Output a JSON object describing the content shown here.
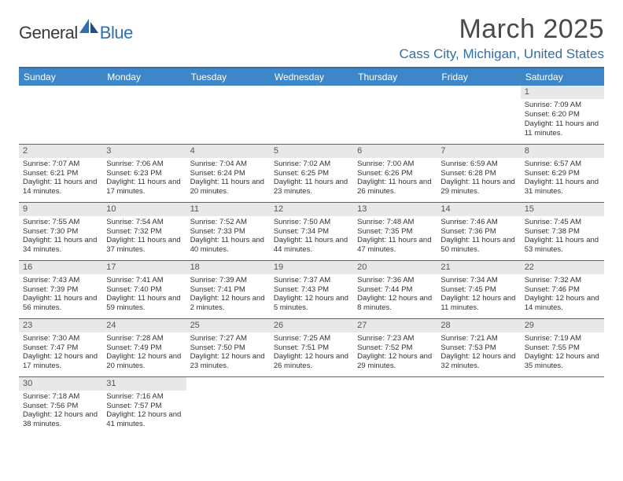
{
  "logo": {
    "part1": "General",
    "part2": "Blue"
  },
  "title": "March 2025",
  "location": "Cass City, Michigan, United States",
  "colors": {
    "header_bg": "#3d87c9",
    "accent": "#2f6fae",
    "daynum_bg": "#e8e8e8",
    "text": "#333333"
  },
  "weekdays": [
    "Sunday",
    "Monday",
    "Tuesday",
    "Wednesday",
    "Thursday",
    "Friday",
    "Saturday"
  ],
  "weeks": [
    [
      null,
      null,
      null,
      null,
      null,
      null,
      {
        "n": "1",
        "sr": "Sunrise: 7:09 AM",
        "ss": "Sunset: 6:20 PM",
        "dl": "Daylight: 11 hours and 11 minutes."
      }
    ],
    [
      {
        "n": "2",
        "sr": "Sunrise: 7:07 AM",
        "ss": "Sunset: 6:21 PM",
        "dl": "Daylight: 11 hours and 14 minutes."
      },
      {
        "n": "3",
        "sr": "Sunrise: 7:06 AM",
        "ss": "Sunset: 6:23 PM",
        "dl": "Daylight: 11 hours and 17 minutes."
      },
      {
        "n": "4",
        "sr": "Sunrise: 7:04 AM",
        "ss": "Sunset: 6:24 PM",
        "dl": "Daylight: 11 hours and 20 minutes."
      },
      {
        "n": "5",
        "sr": "Sunrise: 7:02 AM",
        "ss": "Sunset: 6:25 PM",
        "dl": "Daylight: 11 hours and 23 minutes."
      },
      {
        "n": "6",
        "sr": "Sunrise: 7:00 AM",
        "ss": "Sunset: 6:26 PM",
        "dl": "Daylight: 11 hours and 26 minutes."
      },
      {
        "n": "7",
        "sr": "Sunrise: 6:59 AM",
        "ss": "Sunset: 6:28 PM",
        "dl": "Daylight: 11 hours and 29 minutes."
      },
      {
        "n": "8",
        "sr": "Sunrise: 6:57 AM",
        "ss": "Sunset: 6:29 PM",
        "dl": "Daylight: 11 hours and 31 minutes."
      }
    ],
    [
      {
        "n": "9",
        "sr": "Sunrise: 7:55 AM",
        "ss": "Sunset: 7:30 PM",
        "dl": "Daylight: 11 hours and 34 minutes."
      },
      {
        "n": "10",
        "sr": "Sunrise: 7:54 AM",
        "ss": "Sunset: 7:32 PM",
        "dl": "Daylight: 11 hours and 37 minutes."
      },
      {
        "n": "11",
        "sr": "Sunrise: 7:52 AM",
        "ss": "Sunset: 7:33 PM",
        "dl": "Daylight: 11 hours and 40 minutes."
      },
      {
        "n": "12",
        "sr": "Sunrise: 7:50 AM",
        "ss": "Sunset: 7:34 PM",
        "dl": "Daylight: 11 hours and 44 minutes."
      },
      {
        "n": "13",
        "sr": "Sunrise: 7:48 AM",
        "ss": "Sunset: 7:35 PM",
        "dl": "Daylight: 11 hours and 47 minutes."
      },
      {
        "n": "14",
        "sr": "Sunrise: 7:46 AM",
        "ss": "Sunset: 7:36 PM",
        "dl": "Daylight: 11 hours and 50 minutes."
      },
      {
        "n": "15",
        "sr": "Sunrise: 7:45 AM",
        "ss": "Sunset: 7:38 PM",
        "dl": "Daylight: 11 hours and 53 minutes."
      }
    ],
    [
      {
        "n": "16",
        "sr": "Sunrise: 7:43 AM",
        "ss": "Sunset: 7:39 PM",
        "dl": "Daylight: 11 hours and 56 minutes."
      },
      {
        "n": "17",
        "sr": "Sunrise: 7:41 AM",
        "ss": "Sunset: 7:40 PM",
        "dl": "Daylight: 11 hours and 59 minutes."
      },
      {
        "n": "18",
        "sr": "Sunrise: 7:39 AM",
        "ss": "Sunset: 7:41 PM",
        "dl": "Daylight: 12 hours and 2 minutes."
      },
      {
        "n": "19",
        "sr": "Sunrise: 7:37 AM",
        "ss": "Sunset: 7:43 PM",
        "dl": "Daylight: 12 hours and 5 minutes."
      },
      {
        "n": "20",
        "sr": "Sunrise: 7:36 AM",
        "ss": "Sunset: 7:44 PM",
        "dl": "Daylight: 12 hours and 8 minutes."
      },
      {
        "n": "21",
        "sr": "Sunrise: 7:34 AM",
        "ss": "Sunset: 7:45 PM",
        "dl": "Daylight: 12 hours and 11 minutes."
      },
      {
        "n": "22",
        "sr": "Sunrise: 7:32 AM",
        "ss": "Sunset: 7:46 PM",
        "dl": "Daylight: 12 hours and 14 minutes."
      }
    ],
    [
      {
        "n": "23",
        "sr": "Sunrise: 7:30 AM",
        "ss": "Sunset: 7:47 PM",
        "dl": "Daylight: 12 hours and 17 minutes."
      },
      {
        "n": "24",
        "sr": "Sunrise: 7:28 AM",
        "ss": "Sunset: 7:49 PM",
        "dl": "Daylight: 12 hours and 20 minutes."
      },
      {
        "n": "25",
        "sr": "Sunrise: 7:27 AM",
        "ss": "Sunset: 7:50 PM",
        "dl": "Daylight: 12 hours and 23 minutes."
      },
      {
        "n": "26",
        "sr": "Sunrise: 7:25 AM",
        "ss": "Sunset: 7:51 PM",
        "dl": "Daylight: 12 hours and 26 minutes."
      },
      {
        "n": "27",
        "sr": "Sunrise: 7:23 AM",
        "ss": "Sunset: 7:52 PM",
        "dl": "Daylight: 12 hours and 29 minutes."
      },
      {
        "n": "28",
        "sr": "Sunrise: 7:21 AM",
        "ss": "Sunset: 7:53 PM",
        "dl": "Daylight: 12 hours and 32 minutes."
      },
      {
        "n": "29",
        "sr": "Sunrise: 7:19 AM",
        "ss": "Sunset: 7:55 PM",
        "dl": "Daylight: 12 hours and 35 minutes."
      }
    ],
    [
      {
        "n": "30",
        "sr": "Sunrise: 7:18 AM",
        "ss": "Sunset: 7:56 PM",
        "dl": "Daylight: 12 hours and 38 minutes."
      },
      {
        "n": "31",
        "sr": "Sunrise: 7:16 AM",
        "ss": "Sunset: 7:57 PM",
        "dl": "Daylight: 12 hours and 41 minutes."
      },
      null,
      null,
      null,
      null,
      null
    ]
  ]
}
